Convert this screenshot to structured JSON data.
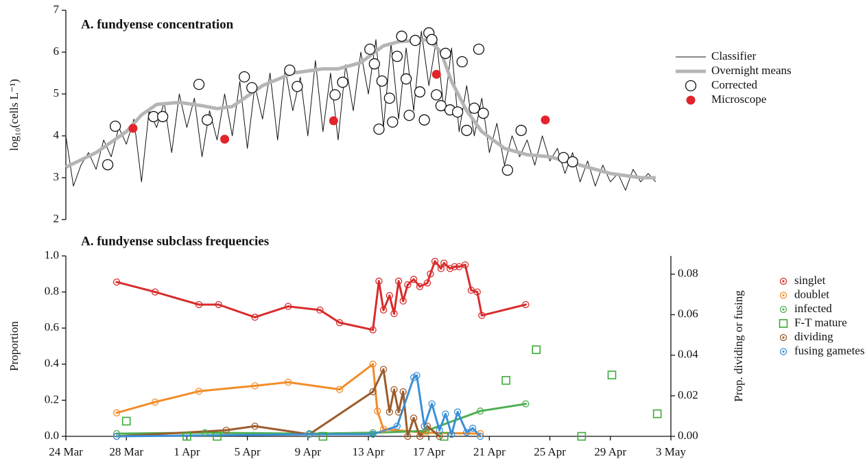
{
  "chart_data": [
    {
      "type": "line",
      "title": "A. fundyense concentration",
      "ylabel": "log₁₀(cells L⁻¹)",
      "xlim": [
        0,
        40
      ],
      "ylim": [
        2,
        7
      ],
      "yticks": [
        2,
        3,
        4,
        5,
        6,
        7
      ],
      "legend": "right",
      "series": [
        {
          "name": "Classifier",
          "color": "#111111",
          "line": true,
          "line_width": 1,
          "x": [
            0,
            0.5,
            1,
            1.5,
            2,
            2.5,
            3,
            3.5,
            4,
            4.5,
            5,
            5.5,
            6,
            6.5,
            7,
            7.5,
            8,
            8.5,
            9,
            9.5,
            10,
            10.5,
            11,
            11.5,
            12,
            12.5,
            13,
            13.5,
            14,
            14.5,
            15,
            15.5,
            16,
            16.5,
            17,
            17.5,
            18,
            18.5,
            19,
            19.5,
            20,
            20.5,
            21,
            21.5,
            22,
            22.5,
            23,
            23.5,
            24,
            24.5,
            25,
            25.5,
            26,
            26.5,
            27,
            27.5,
            28,
            28.5,
            29,
            29.5,
            30,
            30.5,
            31,
            31.5,
            32,
            32.5,
            33,
            33.5,
            34,
            34.5,
            35,
            35.5,
            36,
            36.5,
            37,
            37.5,
            38,
            38.5,
            39
          ],
          "values": [
            4.0,
            2.8,
            3.3,
            3.6,
            3.2,
            3.9,
            3.5,
            4.2,
            3.8,
            4.4,
            2.9,
            4.6,
            4.2,
            4.8,
            3.6,
            5.0,
            4.2,
            4.9,
            3.5,
            4.6,
            3.9,
            5.0,
            4.0,
            5.3,
            3.7,
            5.2,
            4.4,
            5.5,
            3.9,
            5.6,
            4.6,
            5.4,
            4.0,
            5.8,
            4.1,
            5.5,
            3.9,
            5.7,
            4.6,
            6.0,
            5.0,
            6.3,
            4.2,
            6.2,
            4.4,
            6.1,
            4.6,
            6.5,
            5.2,
            6.3,
            4.6,
            6.1,
            4.1,
            5.2,
            4.0,
            4.9,
            3.6,
            4.3,
            3.3,
            4.0,
            3.5,
            3.9,
            3.3,
            4.0,
            3.4,
            3.7,
            3.1,
            3.6,
            2.9,
            3.4,
            2.8,
            3.3,
            2.9,
            3.1,
            2.7,
            3.2,
            2.9,
            3.1,
            2.9
          ]
        },
        {
          "name": "Overnight means",
          "color": "#b5b5b5",
          "line": true,
          "line_width": 5,
          "x": [
            0,
            2,
            4,
            5,
            6,
            7.5,
            9,
            10,
            11,
            13,
            15,
            17,
            18,
            19.5,
            21,
            22,
            24,
            24.8,
            25.5,
            26.5,
            27.5,
            29,
            30.5,
            32,
            34,
            36,
            38,
            39
          ],
          "values": [
            3.25,
            3.6,
            4.1,
            4.5,
            4.75,
            4.8,
            4.72,
            4.65,
            4.7,
            5.2,
            5.5,
            5.6,
            5.6,
            5.75,
            6.15,
            6.25,
            6.3,
            6.0,
            5.3,
            4.6,
            4.1,
            3.7,
            3.55,
            3.5,
            3.3,
            3.1,
            3.0,
            3.0
          ]
        },
        {
          "name": "Corrected",
          "color": "#111111",
          "marker": "circle-open",
          "x": [
            2.77,
            3.27,
            5.8,
            6.4,
            8.8,
            9.35,
            11.8,
            12.3,
            14.8,
            15.3,
            17.8,
            18.3,
            20.1,
            20.4,
            20.7,
            20.9,
            21.4,
            21.6,
            22.2,
            21.9,
            22.5,
            22.7,
            23.1,
            23.4,
            23.7,
            24.0,
            24.2,
            24.5,
            24.8,
            25.1,
            25.4,
            25.9,
            26.2,
            26.5,
            27.0,
            27.3,
            27.6,
            29.2,
            30.1,
            32.9,
            33.5
          ],
          "values": [
            3.31,
            4.23,
            4.46,
            4.46,
            5.23,
            4.38,
            5.41,
            5.15,
            5.57,
            5.18,
            4.98,
            5.28,
            6.07,
            5.72,
            4.16,
            5.31,
            4.9,
            4.33,
            6.38,
            5.9,
            5.36,
            4.49,
            6.28,
            5.05,
            4.38,
            6.46,
            6.3,
            4.98,
            4.72,
            5.97,
            4.62,
            4.57,
            5.77,
            4.13,
            4.66,
            6.07,
            4.54,
            3.18,
            4.13,
            3.48,
            3.38
          ]
        },
        {
          "name": "Microscope",
          "color": "#e3242b",
          "marker": "circle",
          "x": [
            4.44,
            10.5,
            17.7,
            24.5,
            31.7
          ],
          "values": [
            4.18,
            3.92,
            4.36,
            5.47,
            4.38
          ]
        }
      ]
    },
    {
      "type": "line",
      "title": "A. fundyense subclass frequencies",
      "ylabel": "Proportion",
      "y2label": "Prop. dividing or fusing",
      "xlim": [
        0,
        40
      ],
      "xticks": [
        {
          "value": 0,
          "label": "24 Mar"
        },
        {
          "value": 4,
          "label": "28 Mar"
        },
        {
          "value": 8,
          "label": "1 Apr"
        },
        {
          "value": 12,
          "label": "5 Apr"
        },
        {
          "value": 16,
          "label": "9 Apr"
        },
        {
          "value": 20,
          "label": "13 Apr"
        },
        {
          "value": 24,
          "label": "17 Apr"
        },
        {
          "value": 28,
          "label": "21 Apr"
        },
        {
          "value": 32,
          "label": "25 Apr"
        },
        {
          "value": 36,
          "label": "29 Apr"
        },
        {
          "value": 40,
          "label": "3 May"
        }
      ],
      "ylim": [
        0,
        1
      ],
      "yticks": [
        {
          "value": 0,
          "label": "0.0"
        },
        {
          "value": 0.2,
          "label": "0.2"
        },
        {
          "value": 0.4,
          "label": "0.4"
        },
        {
          "value": 0.6,
          "label": "0.6"
        },
        {
          "value": 0.8,
          "label": "0.8"
        },
        {
          "value": 1,
          "label": "1.0"
        }
      ],
      "y2lim": [
        0,
        0.089
      ],
      "y2ticks": [
        {
          "value": 0,
          "label": "0.00"
        },
        {
          "value": 0.02,
          "label": "0.02"
        },
        {
          "value": 0.04,
          "label": "0.04"
        },
        {
          "value": 0.06,
          "label": "0.06"
        },
        {
          "value": 0.08,
          "label": "0.08"
        }
      ],
      "legend": "right",
      "series": [
        {
          "name": "singlet",
          "color": "#d92b2b",
          "line": true,
          "line_width": 3,
          "marker": "circle-dot",
          "x": [
            3.36,
            5.9,
            8.8,
            10.1,
            12.5,
            14.7,
            16.8,
            18.1,
            20.3,
            20.7,
            21.0,
            21.4,
            21.7,
            22.0,
            22.3,
            22.6,
            23.0,
            23.4,
            23.9,
            24.1,
            24.4,
            24.8,
            25.0,
            25.4,
            25.7,
            26.0,
            26.4,
            26.8,
            27.2,
            27.5,
            30.4
          ],
          "values": [
            0.855,
            0.8,
            0.73,
            0.73,
            0.66,
            0.72,
            0.7,
            0.63,
            0.59,
            0.86,
            0.7,
            0.78,
            0.68,
            0.86,
            0.75,
            0.84,
            0.87,
            0.83,
            0.85,
            0.9,
            0.97,
            0.93,
            0.96,
            0.93,
            0.94,
            0.94,
            0.95,
            0.81,
            0.8,
            0.67,
            0.73
          ]
        },
        {
          "name": "doublet",
          "color": "#f28c28",
          "line": true,
          "line_width": 3,
          "marker": "circle-dot",
          "x": [
            3.36,
            5.9,
            8.8,
            12.5,
            14.7,
            18.1,
            20.3,
            20.6,
            21.0,
            23.8,
            27.4
          ],
          "values": [
            0.13,
            0.19,
            0.25,
            0.28,
            0.3,
            0.26,
            0.4,
            0.14,
            0.04,
            0.02,
            0.015
          ]
        },
        {
          "name": "infected",
          "color": "#4caf50",
          "line": true,
          "line_width": 3,
          "marker": "circle-dot",
          "x": [
            3.36,
            9.2,
            16.1,
            20.3,
            23.8,
            27.4,
            30.4
          ],
          "values": [
            0.015,
            0.02,
            0.015,
            0.02,
            0.03,
            0.14,
            0.18
          ]
        },
        {
          "name": "F-T mature",
          "color": "#3aaa35",
          "marker": "square-open",
          "x": [
            4.0,
            8.0,
            10.0,
            17.0,
            25.0,
            29.1,
            31.1,
            34.1,
            36.1,
            39.1
          ],
          "values": [
            0.084,
            0,
            0,
            0,
            0,
            0.31,
            0.48,
            0,
            0.34,
            0.125
          ]
        },
        {
          "name": "dividing",
          "color": "#9b5a2a",
          "line": true,
          "line_width": 3,
          "marker": "circle-dot",
          "axis": "y2",
          "x": [
            3.36,
            10.6,
            12.5,
            16.1,
            20.3,
            21.0,
            21.4,
            21.7,
            22.0,
            22.3,
            22.6,
            23.0,
            23.4,
            23.9,
            24.7
          ],
          "values": [
            0,
            0.003,
            0.005,
            0.001,
            0.022,
            0.033,
            0.012,
            0.023,
            0.012,
            0.022,
            0,
            0.009,
            0,
            0.005,
            0
          ]
        },
        {
          "name": "fusing gametes",
          "color": "#3a8fd6",
          "line": true,
          "line_width": 3,
          "marker": "circle-dot",
          "axis": "y2",
          "x": [
            3.36,
            16.1,
            20.3,
            21.9,
            23.0,
            23.2,
            23.7,
            24.2,
            24.7,
            25.1,
            25.5,
            25.9,
            26.5,
            26.9,
            27.4
          ],
          "values": [
            0,
            0.001,
            0.001,
            0.005,
            0.029,
            0.03,
            0.005,
            0.016,
            0.003,
            0.011,
            0.001,
            0.012,
            0.002,
            0.004,
            0
          ]
        }
      ]
    }
  ]
}
